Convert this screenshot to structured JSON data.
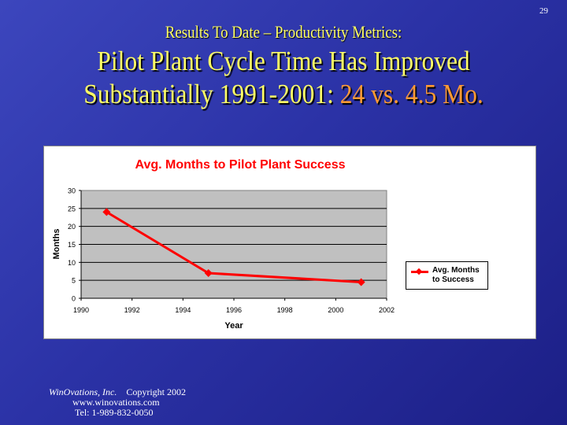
{
  "page_number": "29",
  "header": {
    "subtitle": "Results To Date – Productivity Metrics:",
    "title_line1": "Pilot Plant Cycle Time Has Improved",
    "title_line2_prefix": "Substantially 1991-2001: ",
    "title_line2_highlight": "24 vs. 4.5 Mo."
  },
  "colors": {
    "title": "#ffff66",
    "highlight": "#ff9a33",
    "series": "#ff0000",
    "plot_bg": "#c0c0c0"
  },
  "chart_data": {
    "type": "line",
    "title": "Avg. Months to Pilot Plant Success",
    "xlabel": "Year",
    "ylabel": "Months",
    "xlim": [
      1990,
      2002
    ],
    "ylim": [
      0,
      30
    ],
    "xticks": [
      "1990",
      "1992",
      "1994",
      "1996",
      "1998",
      "2000",
      "2002"
    ],
    "yticks": [
      "0",
      "5",
      "10",
      "15",
      "20",
      "25",
      "30"
    ],
    "grid": "horizontal",
    "legend_placement": "right",
    "series": [
      {
        "name": "Avg. Months to Success",
        "x": [
          1991,
          1995,
          2001
        ],
        "values": [
          24,
          7,
          4.5
        ]
      }
    ]
  },
  "footer": {
    "company": "WinOvations, Inc.",
    "copyright": "Copyright 2002",
    "website": "www.winovations.com",
    "phone": "Tel:  1-989-832-0050"
  }
}
